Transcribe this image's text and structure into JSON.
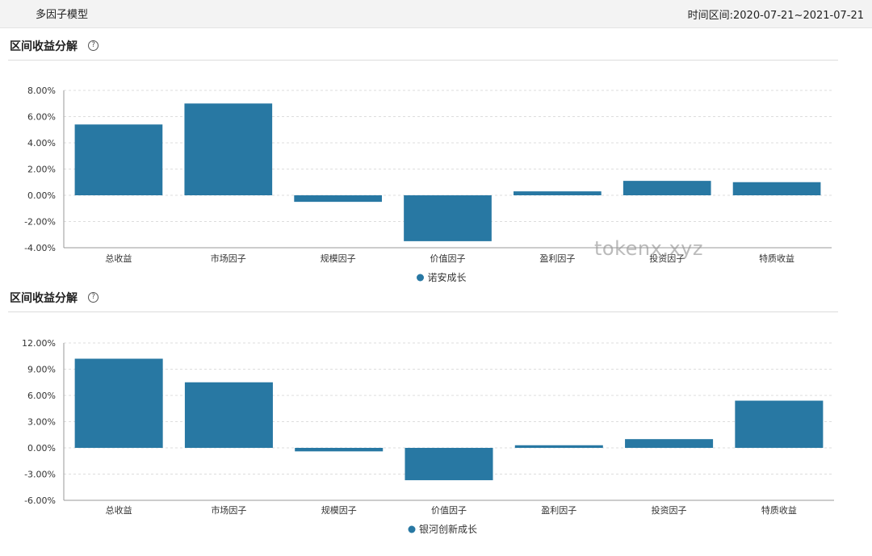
{
  "header": {
    "app_title": "多因子模型",
    "time_range": "时间区间:2020-07-21~2021-07-21"
  },
  "watermark": "tokenx.xyz",
  "help_glyph": "?",
  "sections": [
    {
      "title": "区间收益分解"
    },
    {
      "title": "区间收益分解"
    }
  ],
  "colors": {
    "bar": "#2878a3",
    "grid": "#dddddd",
    "axis": "#999999"
  },
  "chart_data": [
    {
      "type": "bar",
      "title": "",
      "categories": [
        "总收益",
        "市场因子",
        "规模因子",
        "价值因子",
        "盈利因子",
        "投资因子",
        "特质收益"
      ],
      "series": [
        {
          "name": "诺安成长",
          "values": [
            5.4,
            7.0,
            -0.5,
            -3.5,
            0.3,
            1.1,
            1.0
          ]
        }
      ],
      "ylim": [
        -4,
        8
      ],
      "yticks": [
        "8.00%",
        "6.00%",
        "4.00%",
        "2.00%",
        "0.00%",
        "-2.00%",
        "-4.00%"
      ],
      "ytick_values": [
        8,
        6,
        4,
        2,
        0,
        -2,
        -4
      ],
      "grid": true,
      "legend": "bottom-center"
    },
    {
      "type": "bar",
      "title": "",
      "categories": [
        "总收益",
        "市场因子",
        "规模因子",
        "价值因子",
        "盈利因子",
        "投资因子",
        "特质收益"
      ],
      "series": [
        {
          "name": "银河创新成长",
          "values": [
            10.2,
            7.5,
            -0.4,
            -3.7,
            0.3,
            1.0,
            5.4
          ]
        }
      ],
      "ylim": [
        -6,
        12
      ],
      "yticks": [
        "12.00%",
        "9.00%",
        "6.00%",
        "3.00%",
        "0.00%",
        "-3.00%",
        "-6.00%"
      ],
      "ytick_values": [
        12,
        9,
        6,
        3,
        0,
        -3,
        -6
      ],
      "grid": true,
      "legend": "bottom-center"
    }
  ]
}
